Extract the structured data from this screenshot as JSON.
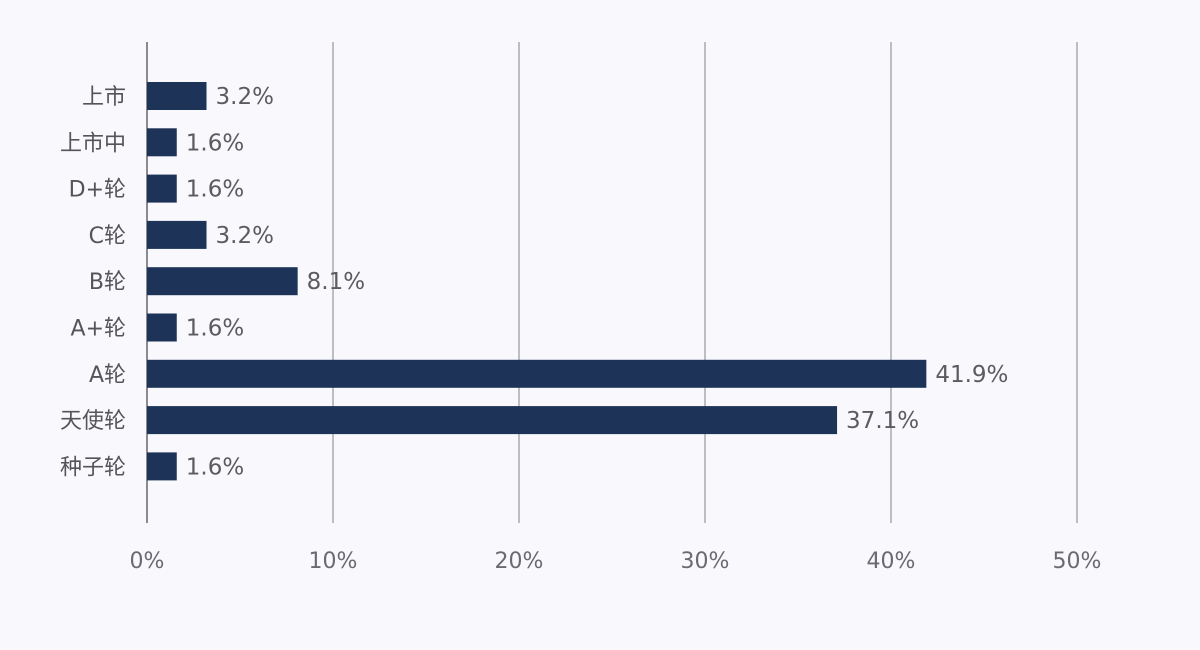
{
  "chart_data": {
    "type": "bar",
    "orientation": "horizontal",
    "categories": [
      "上市",
      "上市中",
      "D+轮",
      "C轮",
      "B轮",
      "A+轮",
      "A轮",
      "天使轮",
      "种子轮"
    ],
    "values": [
      3.2,
      1.6,
      1.6,
      3.2,
      8.1,
      1.6,
      41.9,
      37.1,
      1.6
    ],
    "value_labels": [
      "3.2%",
      "1.6%",
      "1.6%",
      "3.2%",
      "8.1%",
      "1.6%",
      "41.9%",
      "37.1%",
      "1.6%"
    ],
    "xlim": [
      0,
      50
    ],
    "x_ticks": [
      0,
      10,
      20,
      30,
      40,
      50
    ],
    "x_tick_labels": [
      "0%",
      "10%",
      "20%",
      "30%",
      "40%",
      "50%"
    ],
    "grid": true,
    "legend": "none",
    "colors": {
      "bar": "#1d3358",
      "background": "#f9f8fc",
      "grid": "#a9aab0"
    }
  }
}
